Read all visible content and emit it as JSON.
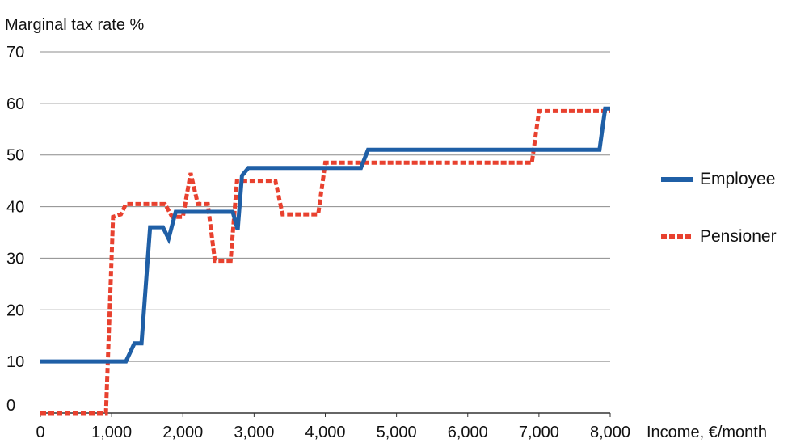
{
  "chart_data": {
    "type": "line",
    "title": "",
    "ylabel": "Marginal tax rate %",
    "xlabel": "Income, €/month",
    "xlim": [
      0,
      8000
    ],
    "ylim": [
      0,
      70
    ],
    "x_ticks": [
      0,
      1000,
      2000,
      3000,
      4000,
      5000,
      6000,
      7000,
      8000
    ],
    "x_tick_labels": [
      "0",
      "1,000",
      "2,000",
      "3,000",
      "4,000",
      "5,000",
      "6,000",
      "7,000",
      "8,000"
    ],
    "y_ticks": [
      0,
      10,
      20,
      30,
      40,
      50,
      60,
      70
    ],
    "y_tick_labels": [
      "0",
      "10",
      "20",
      "30",
      "40",
      "50",
      "60",
      "70"
    ],
    "grid": "horizontal",
    "legend_position": "right",
    "series": [
      {
        "name": "Employee",
        "color": "#1f5fa6",
        "style": "solid",
        "points": [
          [
            0,
            10
          ],
          [
            1200,
            10
          ],
          [
            1320,
            13.5
          ],
          [
            1420,
            13.5
          ],
          [
            1540,
            36
          ],
          [
            1720,
            36
          ],
          [
            1800,
            33.8
          ],
          [
            1900,
            39
          ],
          [
            2700,
            39
          ],
          [
            2770,
            35.5
          ],
          [
            2830,
            46
          ],
          [
            2920,
            47.5
          ],
          [
            4500,
            47.5
          ],
          [
            4600,
            51
          ],
          [
            7850,
            51
          ],
          [
            7930,
            59
          ],
          [
            8000,
            59
          ]
        ]
      },
      {
        "name": "Pensioner",
        "color": "#e8412f",
        "style": "dashed",
        "points": [
          [
            0,
            0
          ],
          [
            920,
            0
          ],
          [
            1020,
            38
          ],
          [
            1130,
            38.5
          ],
          [
            1200,
            40.5
          ],
          [
            1750,
            40.5
          ],
          [
            1850,
            38
          ],
          [
            2000,
            38
          ],
          [
            2110,
            46.5
          ],
          [
            2210,
            40.5
          ],
          [
            2350,
            40.5
          ],
          [
            2450,
            29.5
          ],
          [
            2670,
            29.5
          ],
          [
            2760,
            45
          ],
          [
            3300,
            45
          ],
          [
            3400,
            38.5
          ],
          [
            3900,
            38.5
          ],
          [
            4000,
            48.5
          ],
          [
            6900,
            48.5
          ],
          [
            7000,
            58.5
          ],
          [
            8000,
            58.5
          ]
        ]
      }
    ]
  }
}
